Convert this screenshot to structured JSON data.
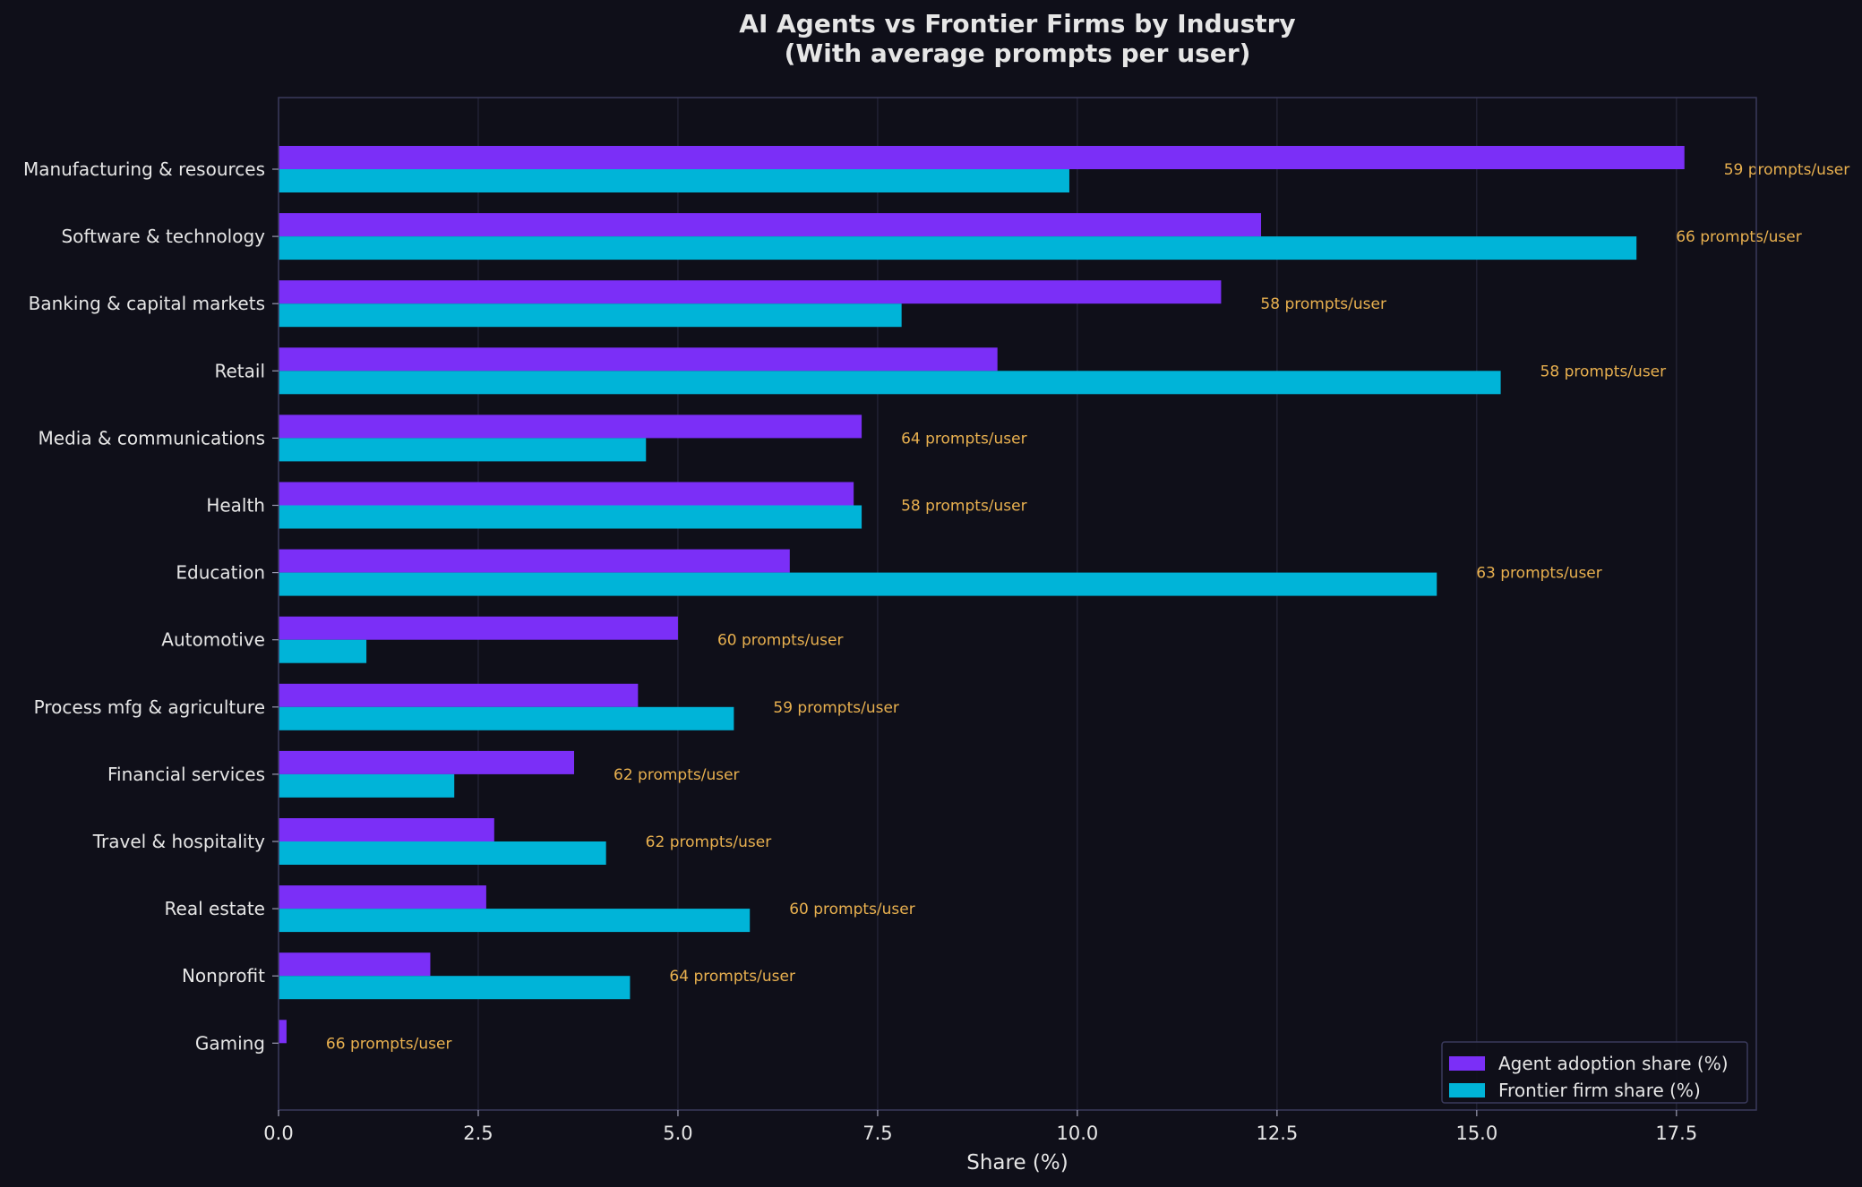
{
  "chart_data": {
    "type": "bar",
    "orientation": "horizontal",
    "title": "AI Agents vs Frontier Firms by Industry",
    "subtitle": "(With average prompts per user)",
    "xlabel": "Share (%)",
    "ylabel": "",
    "xlim": [
      0,
      18.5
    ],
    "xticks": [
      "0.0",
      "2.5",
      "5.0",
      "7.5",
      "10.0",
      "12.5",
      "15.0",
      "17.5"
    ],
    "xtick_values": [
      0,
      2.5,
      5,
      7.5,
      10,
      12.5,
      15,
      17.5
    ],
    "grid": "vertical",
    "legend_position": "bottom-right",
    "categories": [
      "Manufacturing & resources",
      "Software & technology",
      "Banking & capital markets",
      "Retail",
      "Media & communications",
      "Health",
      "Education",
      "Automotive",
      "Process mfg & agriculture",
      "Financial services",
      "Travel & hospitality",
      "Real estate",
      "Nonprofit",
      "Gaming"
    ],
    "series": [
      {
        "name": "Agent adoption share (%)",
        "color": "#7b2ff7",
        "values": [
          17.6,
          12.3,
          11.8,
          9.0,
          7.3,
          7.2,
          6.4,
          5.0,
          4.5,
          3.7,
          2.7,
          2.6,
          1.9,
          0.1
        ]
      },
      {
        "name": "Frontier firm share (%)",
        "color": "#00b4d8",
        "values": [
          9.9,
          17.0,
          7.8,
          15.3,
          4.6,
          7.3,
          14.5,
          1.1,
          5.7,
          2.2,
          4.1,
          5.9,
          4.4,
          0.0
        ]
      }
    ],
    "annotations": [
      "59 prompts/user",
      "66 prompts/user",
      "58 prompts/user",
      "58 prompts/user",
      "64 prompts/user",
      "58 prompts/user",
      "63 prompts/user",
      "60 prompts/user",
      "59 prompts/user",
      "62 prompts/user",
      "62 prompts/user",
      "60 prompts/user",
      "64 prompts/user",
      "66 prompts/user"
    ],
    "colors": {
      "background": "#0f0f19",
      "plot_border": "#3a3a5c",
      "grid": "#26263a",
      "text": "#e6e6e6",
      "annotation": "#e8b04f"
    }
  }
}
